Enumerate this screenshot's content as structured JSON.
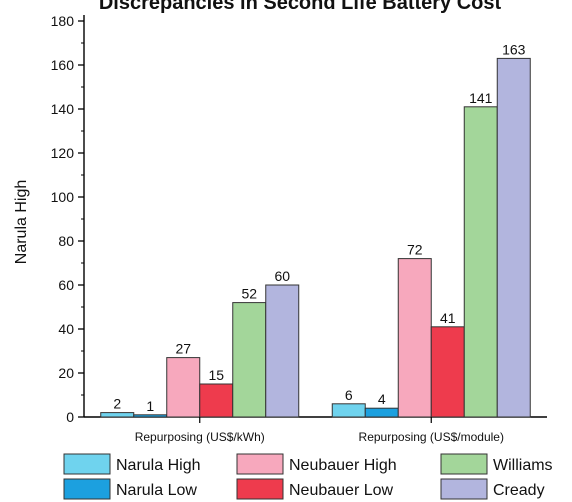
{
  "chart_data": {
    "type": "bar",
    "title": "Discrepancies in Second Life Battery Cost",
    "xlabel": "",
    "ylabel": "Narula High",
    "ylim": [
      0,
      180
    ],
    "yticks": [
      0,
      20,
      40,
      60,
      80,
      100,
      120,
      140,
      160,
      180
    ],
    "categories": [
      "Repurposing (US$/kWh)",
      "Repurposing (US$/module)"
    ],
    "series": [
      {
        "name": "Narula High",
        "color": "#6fd3ee",
        "values": [
          2,
          6
        ]
      },
      {
        "name": "Narula Low",
        "color": "#1ca0df",
        "values": [
          1,
          4
        ]
      },
      {
        "name": "Neubauer High",
        "color": "#f7a8bd",
        "values": [
          27,
          72
        ]
      },
      {
        "name": "Neubauer Low",
        "color": "#ee3b4d",
        "values": [
          15,
          41
        ]
      },
      {
        "name": "Williams",
        "color": "#a3d69a",
        "values": [
          52,
          141
        ]
      },
      {
        "name": "Cready",
        "color": "#b2b5de",
        "values": [
          60,
          163
        ]
      }
    ],
    "grid": false,
    "legend_position": "bottom"
  }
}
